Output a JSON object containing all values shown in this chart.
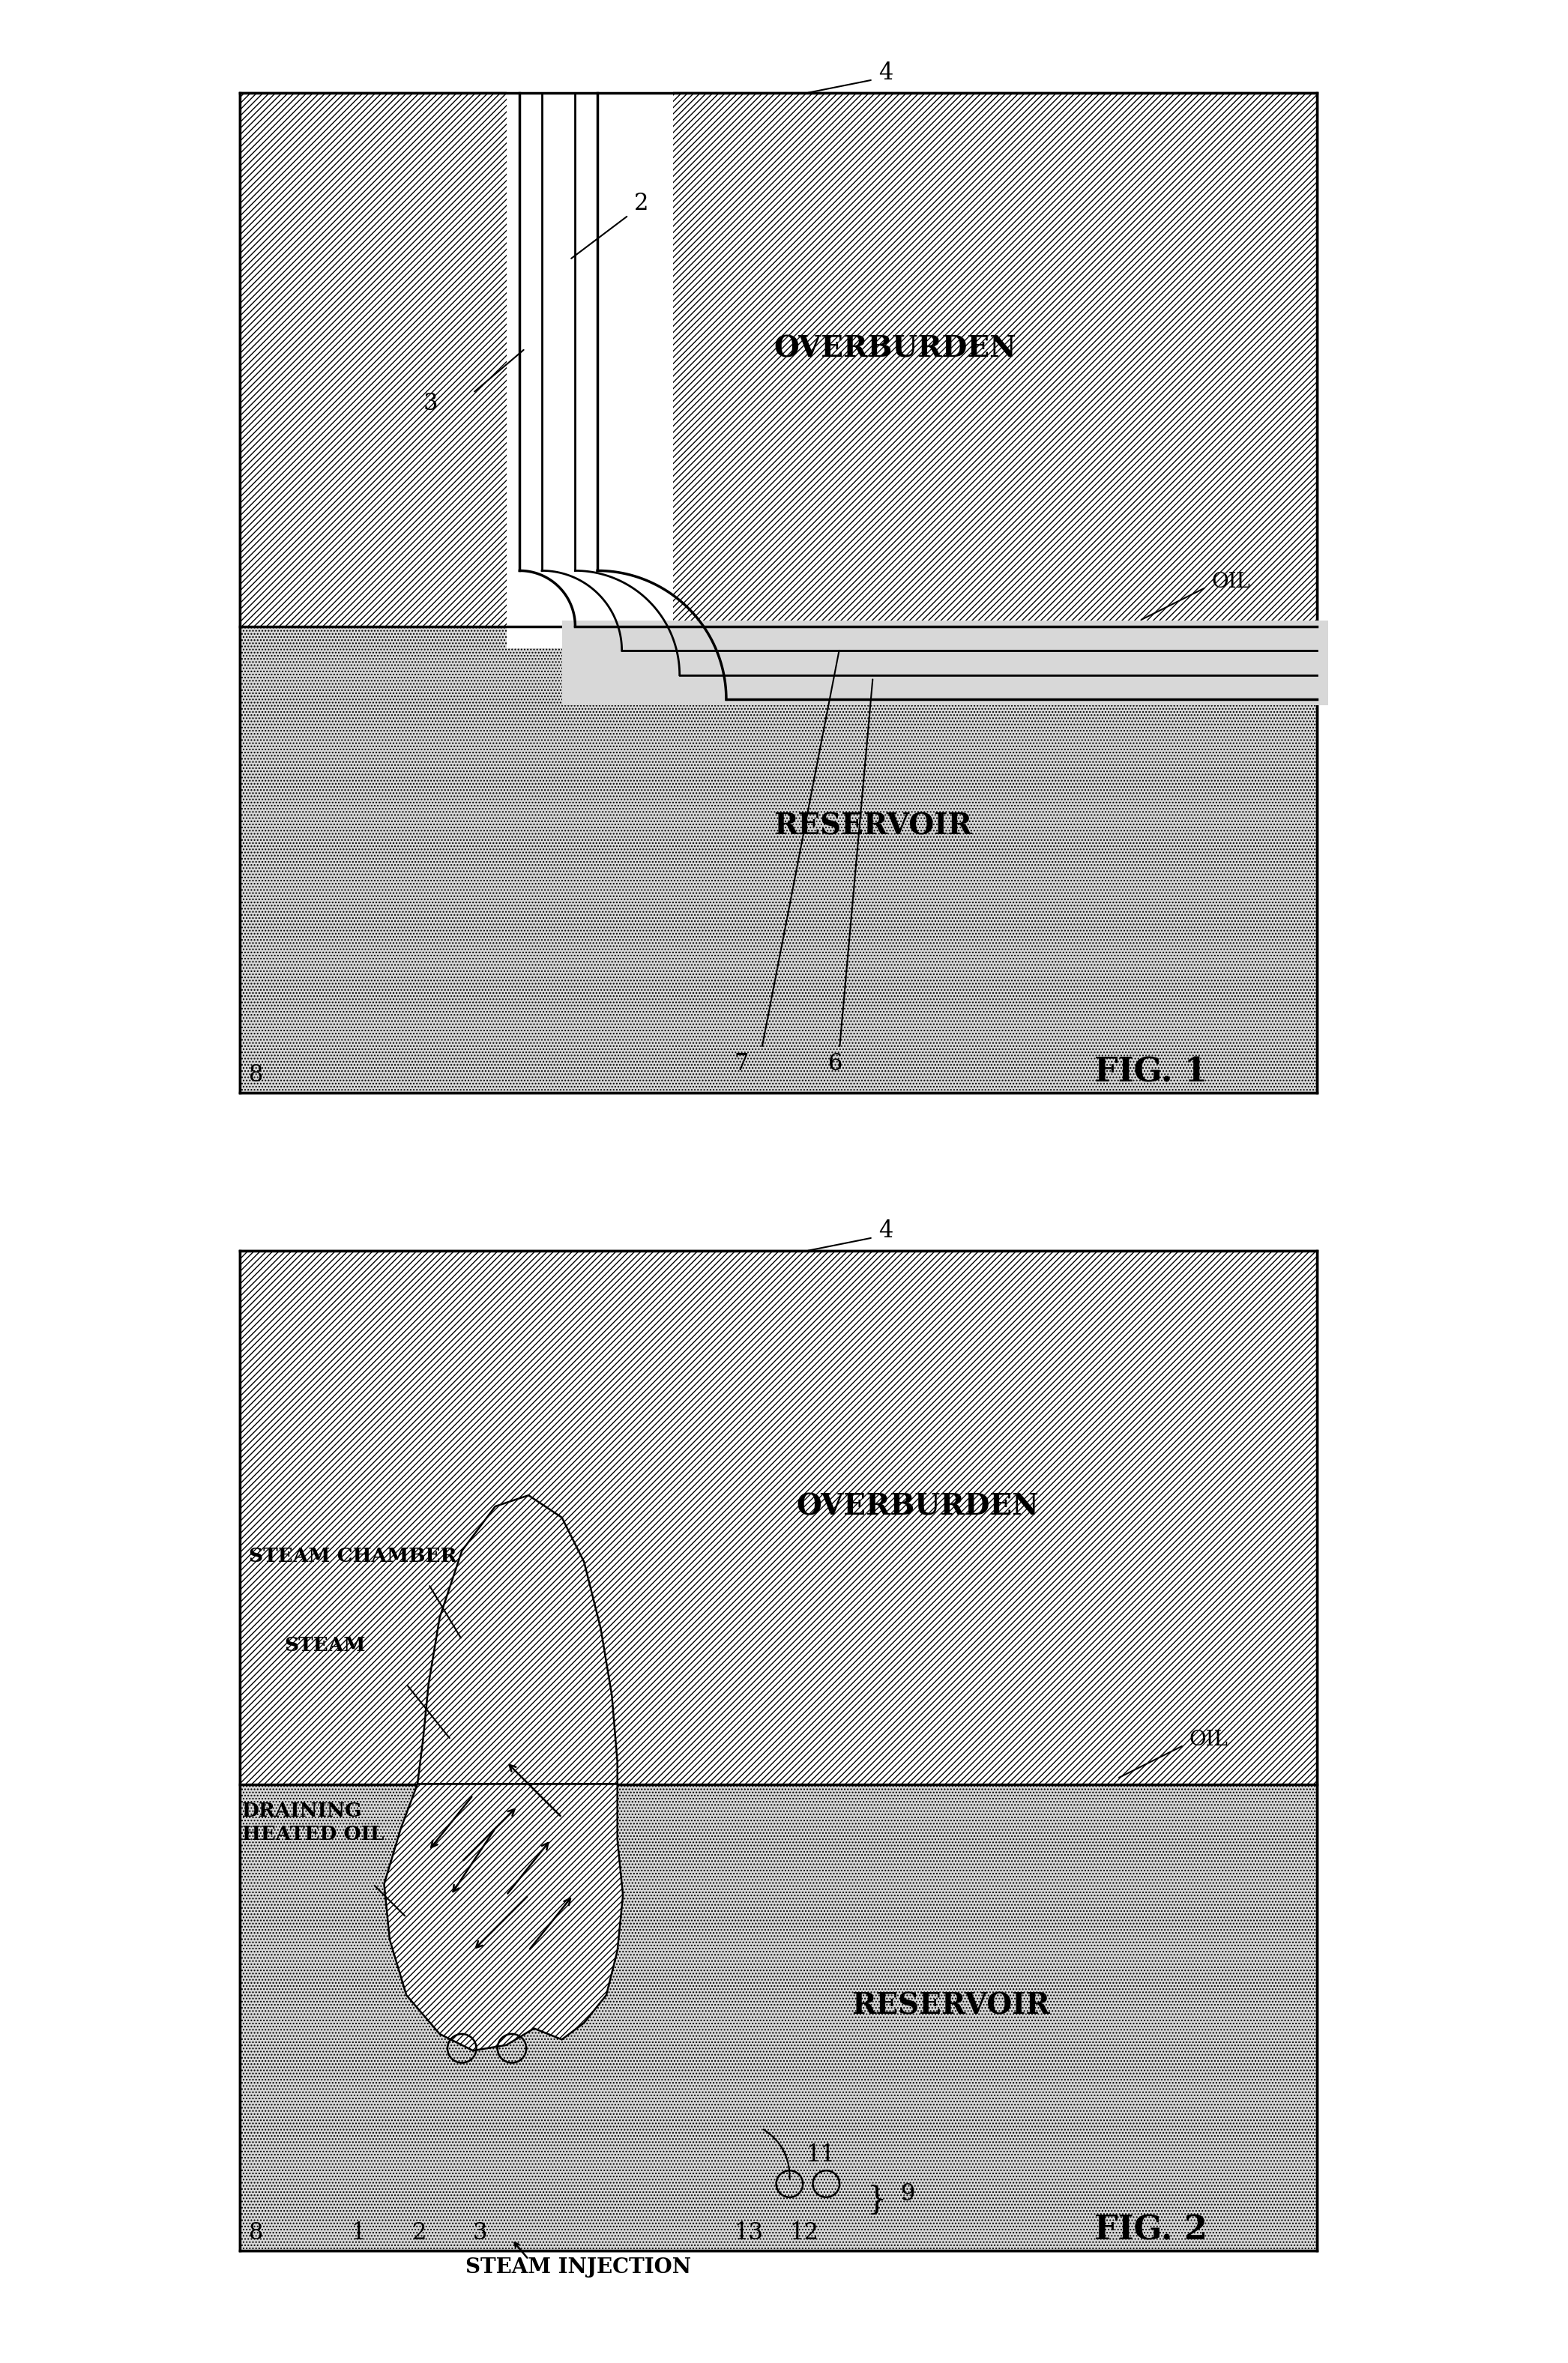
{
  "fig_width": 20.92,
  "fig_height": 31.53,
  "bg_color": "#ffffff",
  "fig1_title": "FIG. 1",
  "fig2_title": "FIG. 2",
  "label_4a": "4",
  "label_4b": "4",
  "label_2": "2",
  "label_3": "3",
  "label_6": "6",
  "label_7": "7",
  "label_8a": "8",
  "label_8b": "8",
  "label_overburden": "OVERBURDEN",
  "label_reservoir": "RESERVOIR",
  "label_oil_a": "OIL",
  "label_oil_b": "OIL",
  "label_steam_chamber": "STEAM CHAMBER",
  "label_steam": "STEAM",
  "label_draining": "DRAINING\nHEATED OIL",
  "label_steam_injection": "STEAM INJECTION",
  "label_9": "9",
  "label_11": "11",
  "label_12": "12",
  "label_13": "13"
}
